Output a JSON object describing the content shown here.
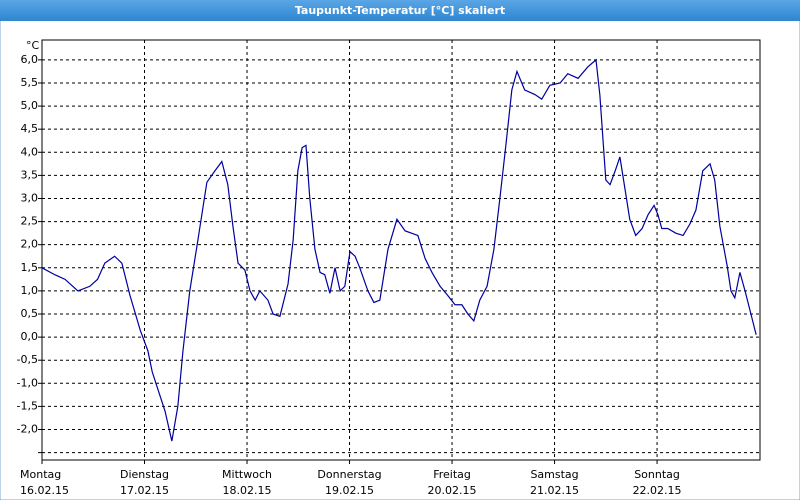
{
  "chart_data": {
    "type": "line",
    "title": "Taupunkt-Temperatur [°C] skaliert",
    "y_unit": "°C",
    "color": "#0000a0",
    "grid": true,
    "xlim": [
      0,
      168.1
    ],
    "xticks": [
      {
        "value": 0,
        "label": "Montag"
      },
      {
        "value": 24,
        "label": "Dienstag"
      },
      {
        "value": 48,
        "label": "Mittwoch"
      },
      {
        "value": 72,
        "label": "Donnerstag"
      },
      {
        "value": 96,
        "label": "Freitag"
      },
      {
        "value": 120,
        "label": "Samstag"
      },
      {
        "value": 144,
        "label": "Sonntag"
      }
    ],
    "xtick_dates": [
      "16.02.15",
      "17.02.15",
      "18.02.15",
      "19.02.15",
      "20.02.15",
      "21.02.15",
      "22.02.15"
    ],
    "ylim": [
      -2.66,
      6.43
    ],
    "yticks": [
      {
        "value": -2.5,
        "label": ""
      },
      {
        "value": -2,
        "label": "-2,0"
      },
      {
        "value": -1.5,
        "label": "-1,5"
      },
      {
        "value": -1,
        "label": "-1,0"
      },
      {
        "value": -0.5,
        "label": "-0,5"
      },
      {
        "value": 0,
        "label": "0,0"
      },
      {
        "value": 0.5,
        "label": "0,5"
      },
      {
        "value": 1,
        "label": "1,0"
      },
      {
        "value": 1.5,
        "label": "1,5"
      },
      {
        "value": 2,
        "label": "2,0"
      },
      {
        "value": 2.5,
        "label": "2,5"
      },
      {
        "value": 3,
        "label": "3,0"
      },
      {
        "value": 3.5,
        "label": "3,5"
      },
      {
        "value": 4,
        "label": "4,0"
      },
      {
        "value": 4.5,
        "label": "4,5"
      },
      {
        "value": 5,
        "label": "5,0"
      },
      {
        "value": 5.5,
        "label": "5,5"
      },
      {
        "value": 6,
        "label": "6,0"
      }
    ],
    "x": [
      0,
      3,
      5.4,
      8.4,
      11.2,
      13,
      14.7,
      17,
      18.7,
      20.6,
      23,
      24.8,
      25.8,
      27.2,
      28.8,
      30.4,
      31.8,
      33,
      34.6,
      36.5,
      38.6,
      40.5,
      42.1,
      43.5,
      44.7,
      45.9,
      47.5,
      48.7,
      49.9,
      51,
      52.9,
      54.1,
      55.7,
      57.6,
      58.8,
      59.9,
      60.9,
      61.8,
      62.7,
      63.9,
      65.1,
      66.2,
      67.4,
      68.6,
      69.8,
      70.9,
      72.1,
      73.3,
      74.4,
      76.3,
      77.7,
      79.1,
      81,
      83.1,
      85,
      88,
      89.7,
      91.3,
      93.2,
      95,
      96.7,
      98.3,
      99.7,
      101.1,
      102.5,
      104.2,
      105.8,
      107.2,
      108.6,
      110,
      111.2,
      113,
      115.4,
      117,
      118.9,
      121.3,
      123.1,
      125.5,
      127.8,
      129.7,
      130.6,
      132,
      133,
      134.2,
      135.3,
      136.5,
      137.6,
      139,
      140.5,
      141.9,
      143.3,
      144.2,
      145.1,
      146.5,
      148.4,
      150.1,
      151.7,
      153.1,
      154.7,
      156.4,
      157.5,
      158.7,
      160.4,
      161.3,
      162.2,
      163.4,
      164.6,
      165.7,
      167.2
    ],
    "values": [
      1.5,
      1.35,
      1.25,
      1.0,
      1.1,
      1.25,
      1.6,
      1.75,
      1.6,
      0.9,
      0.15,
      -0.3,
      -0.75,
      -1.15,
      -1.6,
      -2.25,
      -1.5,
      -0.3,
      1.0,
      2.1,
      3.35,
      3.6,
      3.8,
      3.3,
      2.4,
      1.6,
      1.45,
      1.0,
      0.8,
      1.0,
      0.8,
      0.5,
      0.45,
      1.15,
      2.1,
      3.6,
      4.1,
      4.15,
      3.0,
      1.9,
      1.4,
      1.35,
      0.95,
      1.5,
      1.0,
      1.1,
      1.85,
      1.75,
      1.5,
      1.0,
      0.75,
      0.8,
      1.9,
      2.55,
      2.3,
      2.2,
      1.7,
      1.4,
      1.1,
      0.9,
      0.7,
      0.7,
      0.5,
      0.35,
      0.8,
      1.1,
      1.9,
      3.0,
      4.15,
      5.35,
      5.75,
      5.35,
      5.25,
      5.15,
      5.45,
      5.5,
      5.7,
      5.6,
      5.85,
      6.0,
      5.25,
      3.4,
      3.3,
      3.6,
      3.9,
      3.2,
      2.55,
      2.2,
      2.35,
      2.65,
      2.85,
      2.65,
      2.35,
      2.35,
      2.25,
      2.2,
      2.45,
      2.75,
      3.6,
      3.75,
      3.4,
      2.4,
      1.55,
      1.0,
      0.85,
      1.4,
      1.0,
      0.6,
      0.05
    ]
  }
}
